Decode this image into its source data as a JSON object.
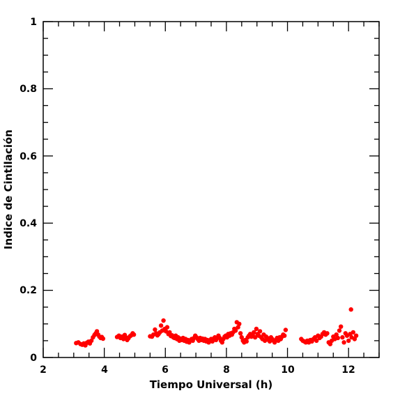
{
  "chart_data": {
    "type": "scatter",
    "xlabel": "Tiempo Universal (h)",
    "ylabel": "Indice de Cintilación",
    "xlim": [
      2,
      13
    ],
    "ylim": [
      0,
      1
    ],
    "x_ticks": [
      "2",
      "4",
      "6",
      "8",
      "10",
      "12"
    ],
    "y_ticks": [
      "0",
      "0.2",
      "0.4",
      "0.6",
      "0.8",
      "1"
    ],
    "grid": false,
    "marker_color": "#ff0000",
    "points": [
      [
        3.08,
        0.043
      ],
      [
        3.15,
        0.045
      ],
      [
        3.22,
        0.04
      ],
      [
        3.28,
        0.038
      ],
      [
        3.33,
        0.042
      ],
      [
        3.38,
        0.036
      ],
      [
        3.43,
        0.044
      ],
      [
        3.48,
        0.047
      ],
      [
        3.53,
        0.042
      ],
      [
        3.58,
        0.05
      ],
      [
        3.63,
        0.06
      ],
      [
        3.68,
        0.067
      ],
      [
        3.72,
        0.072
      ],
      [
        3.76,
        0.078
      ],
      [
        3.8,
        0.068
      ],
      [
        3.84,
        0.062
      ],
      [
        3.88,
        0.058
      ],
      [
        3.92,
        0.061
      ],
      [
        3.96,
        0.056
      ],
      [
        4.42,
        0.061
      ],
      [
        4.48,
        0.065
      ],
      [
        4.53,
        0.058
      ],
      [
        4.58,
        0.062
      ],
      [
        4.63,
        0.055
      ],
      [
        4.67,
        0.067
      ],
      [
        4.71,
        0.06
      ],
      [
        4.75,
        0.052
      ],
      [
        4.79,
        0.057
      ],
      [
        4.84,
        0.063
      ],
      [
        4.88,
        0.066
      ],
      [
        4.93,
        0.072
      ],
      [
        4.97,
        0.068
      ],
      [
        5.5,
        0.063
      ],
      [
        5.56,
        0.062
      ],
      [
        5.61,
        0.068
      ],
      [
        5.66,
        0.083
      ],
      [
        5.7,
        0.072
      ],
      [
        5.74,
        0.066
      ],
      [
        5.78,
        0.07
      ],
      [
        5.82,
        0.075
      ],
      [
        5.86,
        0.095
      ],
      [
        5.9,
        0.08
      ],
      [
        5.94,
        0.11
      ],
      [
        5.98,
        0.085
      ],
      [
        6.02,
        0.078
      ],
      [
        6.06,
        0.09
      ],
      [
        6.1,
        0.07
      ],
      [
        6.14,
        0.075
      ],
      [
        6.18,
        0.064
      ],
      [
        6.22,
        0.066
      ],
      [
        6.26,
        0.06
      ],
      [
        6.3,
        0.058
      ],
      [
        6.34,
        0.065
      ],
      [
        6.38,
        0.055
      ],
      [
        6.42,
        0.06
      ],
      [
        6.46,
        0.05
      ],
      [
        6.5,
        0.056
      ],
      [
        6.54,
        0.052
      ],
      [
        6.58,
        0.058
      ],
      [
        6.62,
        0.05
      ],
      [
        6.66,
        0.055
      ],
      [
        6.7,
        0.047
      ],
      [
        6.74,
        0.052
      ],
      [
        6.78,
        0.045
      ],
      [
        6.82,
        0.05
      ],
      [
        6.86,
        0.055
      ],
      [
        6.9,
        0.05
      ],
      [
        6.94,
        0.058
      ],
      [
        6.98,
        0.065
      ],
      [
        7.02,
        0.06
      ],
      [
        7.06,
        0.055
      ],
      [
        7.1,
        0.05
      ],
      [
        7.14,
        0.058
      ],
      [
        7.18,
        0.052
      ],
      [
        7.22,
        0.056
      ],
      [
        7.26,
        0.05
      ],
      [
        7.3,
        0.055
      ],
      [
        7.34,
        0.048
      ],
      [
        7.38,
        0.052
      ],
      [
        7.42,
        0.045
      ],
      [
        7.46,
        0.05
      ],
      [
        7.5,
        0.055
      ],
      [
        7.54,
        0.048
      ],
      [
        7.58,
        0.056
      ],
      [
        7.62,
        0.06
      ],
      [
        7.66,
        0.052
      ],
      [
        7.7,
        0.058
      ],
      [
        7.74,
        0.065
      ],
      [
        7.78,
        0.058
      ],
      [
        7.82,
        0.05
      ],
      [
        7.86,
        0.045
      ],
      [
        7.9,
        0.055
      ],
      [
        7.94,
        0.062
      ],
      [
        7.98,
        0.065
      ],
      [
        8.02,
        0.06
      ],
      [
        8.06,
        0.07
      ],
      [
        8.1,
        0.065
      ],
      [
        8.14,
        0.072
      ],
      [
        8.18,
        0.068
      ],
      [
        8.22,
        0.075
      ],
      [
        8.26,
        0.085
      ],
      [
        8.3,
        0.08
      ],
      [
        8.34,
        0.105
      ],
      [
        8.38,
        0.09
      ],
      [
        8.42,
        0.1
      ],
      [
        8.46,
        0.072
      ],
      [
        8.5,
        0.06
      ],
      [
        8.54,
        0.05
      ],
      [
        8.58,
        0.045
      ],
      [
        8.62,
        0.052
      ],
      [
        8.66,
        0.048
      ],
      [
        8.7,
        0.06
      ],
      [
        8.74,
        0.065
      ],
      [
        8.78,
        0.07
      ],
      [
        8.82,
        0.062
      ],
      [
        8.86,
        0.068
      ],
      [
        8.9,
        0.075
      ],
      [
        8.94,
        0.06
      ],
      [
        8.98,
        0.085
      ],
      [
        9.02,
        0.07
      ],
      [
        9.06,
        0.065
      ],
      [
        9.1,
        0.078
      ],
      [
        9.14,
        0.06
      ],
      [
        9.18,
        0.055
      ],
      [
        9.22,
        0.068
      ],
      [
        9.26,
        0.05
      ],
      [
        9.3,
        0.062
      ],
      [
        9.34,
        0.058
      ],
      [
        9.38,
        0.052
      ],
      [
        9.42,
        0.048
      ],
      [
        9.46,
        0.06
      ],
      [
        9.5,
        0.055
      ],
      [
        9.54,
        0.05
      ],
      [
        9.58,
        0.045
      ],
      [
        9.62,
        0.052
      ],
      [
        9.66,
        0.058
      ],
      [
        9.7,
        0.05
      ],
      [
        9.74,
        0.06
      ],
      [
        9.78,
        0.055
      ],
      [
        9.82,
        0.062
      ],
      [
        9.86,
        0.068
      ],
      [
        9.9,
        0.065
      ],
      [
        9.94,
        0.082
      ],
      [
        10.45,
        0.055
      ],
      [
        10.5,
        0.05
      ],
      [
        10.55,
        0.048
      ],
      [
        10.6,
        0.045
      ],
      [
        10.65,
        0.05
      ],
      [
        10.7,
        0.045
      ],
      [
        10.75,
        0.052
      ],
      [
        10.8,
        0.048
      ],
      [
        10.85,
        0.055
      ],
      [
        10.9,
        0.06
      ],
      [
        10.95,
        0.05
      ],
      [
        11.0,
        0.065
      ],
      [
        11.05,
        0.058
      ],
      [
        11.1,
        0.062
      ],
      [
        11.15,
        0.07
      ],
      [
        11.2,
        0.075
      ],
      [
        11.25,
        0.068
      ],
      [
        11.3,
        0.072
      ],
      [
        11.35,
        0.045
      ],
      [
        11.4,
        0.04
      ],
      [
        11.45,
        0.05
      ],
      [
        11.5,
        0.062
      ],
      [
        11.55,
        0.055
      ],
      [
        11.6,
        0.068
      ],
      [
        11.65,
        0.058
      ],
      [
        11.7,
        0.08
      ],
      [
        11.75,
        0.092
      ],
      [
        11.8,
        0.06
      ],
      [
        11.85,
        0.045
      ],
      [
        11.9,
        0.072
      ],
      [
        11.95,
        0.065
      ],
      [
        12.0,
        0.05
      ],
      [
        12.05,
        0.07
      ],
      [
        12.1,
        0.06
      ],
      [
        12.15,
        0.075
      ],
      [
        12.2,
        0.055
      ],
      [
        12.25,
        0.065
      ],
      [
        12.08,
        0.143
      ]
    ]
  }
}
